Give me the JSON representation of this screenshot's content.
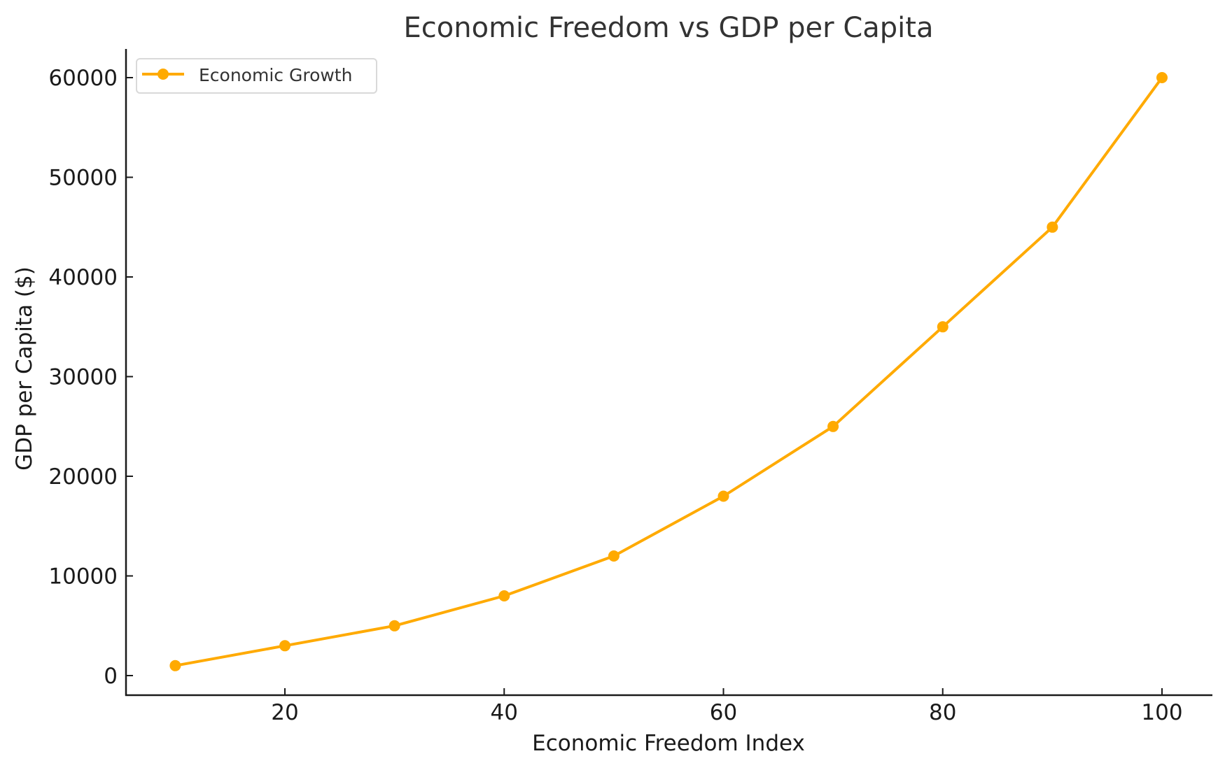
{
  "chart_data": {
    "type": "line",
    "title": "Economic Freedom vs GDP per Capita",
    "xlabel": "Economic Freedom Index",
    "ylabel": "GDP per Capita ($)",
    "x": [
      10,
      20,
      30,
      40,
      50,
      60,
      70,
      80,
      90,
      100
    ],
    "series": [
      {
        "name": "Economic Growth",
        "values": [
          1000,
          3000,
          5000,
          8000,
          12000,
          18000,
          25000,
          35000,
          45000,
          60000
        ],
        "color": "#FFAA00",
        "marker": "circle"
      }
    ],
    "xticks": [
      20,
      40,
      60,
      80,
      100
    ],
    "yticks": [
      0,
      10000,
      20000,
      30000,
      40000,
      50000,
      60000
    ],
    "xlim": [
      5.5,
      104.5
    ],
    "ylim": [
      -1750,
      63000
    ],
    "grid": false,
    "legend_position": "upper left"
  },
  "colors": {
    "series": "#FFAA00",
    "axis": "#1a1a1a",
    "title": "#333333",
    "legend_border": "#d9d9d9"
  }
}
